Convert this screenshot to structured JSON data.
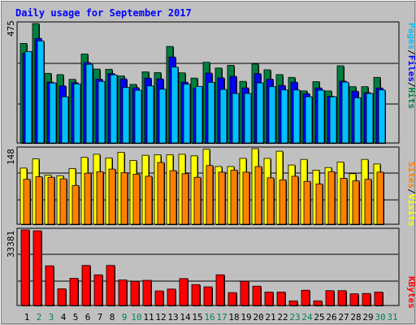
{
  "chart_data": [
    {
      "type": "bar",
      "title": "Daily usage for September 2017",
      "ylabel_max": "475",
      "right_label": [
        {
          "text": "Pages",
          "color": "#00C0FF"
        },
        {
          "text": "Files",
          "color": "#0000FF"
        },
        {
          "text": "Hits",
          "color": "#008040"
        }
      ],
      "categories": [
        "1",
        "2",
        "3",
        "4",
        "5",
        "6",
        "7",
        "8",
        "9",
        "10",
        "11",
        "12",
        "13",
        "14",
        "15",
        "16",
        "17",
        "18",
        "19",
        "20",
        "21",
        "22",
        "23",
        "24",
        "25",
        "26",
        "27",
        "28",
        "29",
        "30",
        "31"
      ],
      "ylim": [
        0,
        475
      ],
      "series": [
        {
          "name": "Hits",
          "color": "#008040",
          "values": [
            396,
            475,
            277,
            272,
            253,
            354,
            294,
            293,
            267,
            233,
            283,
            280,
            384,
            279,
            258,
            321,
            298,
            309,
            245,
            314,
            291,
            272,
            261,
            207,
            244,
            207,
            307,
            224,
            224,
            261,
            0
          ]
        },
        {
          "name": "Files",
          "color": "#0000FF",
          "values": [
            358,
            416,
            242,
            227,
            240,
            320,
            254,
            276,
            255,
            220,
            258,
            255,
            342,
            242,
            219,
            278,
            259,
            265,
            219,
            276,
            254,
            229,
            242,
            196,
            219,
            186,
            246,
            206,
            200,
            219,
            0
          ]
        },
        {
          "name": "Pages",
          "color": "#00C0FF",
          "values": [
            364,
            406,
            239,
            184,
            235,
            313,
            245,
            271,
            221,
            210,
            227,
            214,
            302,
            234,
            225,
            241,
            213,
            197,
            197,
            239,
            224,
            211,
            211,
            184,
            210,
            184,
            242,
            180,
            197,
            211,
            0
          ]
        }
      ]
    },
    {
      "type": "bar",
      "ylabel_max": "148",
      "right_label": [
        {
          "text": "Sites",
          "color": "#FF8000"
        },
        {
          "text": "Visits",
          "color": "#FFFF00"
        }
      ],
      "categories": [
        "1",
        "2",
        "3",
        "4",
        "5",
        "6",
        "7",
        "8",
        "9",
        "10",
        "11",
        "12",
        "13",
        "14",
        "15",
        "16",
        "17",
        "18",
        "19",
        "20",
        "21",
        "22",
        "23",
        "24",
        "25",
        "26",
        "27",
        "28",
        "29",
        "30",
        "31"
      ],
      "ylim": [
        0,
        148
      ],
      "series": [
        {
          "name": "Visits",
          "color": "#FFFF00",
          "values": [
            110,
            128,
            96,
            95,
            109,
            131,
            137,
            130,
            141,
            125,
            135,
            136,
            136,
            137,
            134,
            147,
            113,
            113,
            129,
            148,
            129,
            143,
            116,
            127,
            106,
            111,
            122,
            99,
            127,
            118,
            0
          ]
        },
        {
          "name": "Sites",
          "color": "#FF8000",
          "values": [
            88,
            93,
            92,
            89,
            76,
            100,
            103,
            108,
            101,
            98,
            94,
            121,
            105,
            99,
            92,
            115,
            102,
            106,
            102,
            113,
            91,
            87,
            94,
            84,
            79,
            103,
            90,
            85,
            88,
            102,
            0
          ]
        }
      ]
    },
    {
      "type": "bar",
      "ylabel_max": "33381",
      "right_label": [
        {
          "text": "KBytes",
          "color": "#FF0000"
        }
      ],
      "categories": [
        "1",
        "2",
        "3",
        "4",
        "5",
        "6",
        "7",
        "8",
        "9",
        "10",
        "11",
        "12",
        "13",
        "14",
        "15",
        "16",
        "17",
        "18",
        "19",
        "20",
        "21",
        "22",
        "23",
        "24",
        "25",
        "26",
        "27",
        "28",
        "29",
        "30",
        "31"
      ],
      "ylim": [
        0,
        33381
      ],
      "series": [
        {
          "name": "KBytes",
          "color": "#FF0000",
          "values": [
            33381,
            33015,
            17532,
            7382,
            12000,
            17712,
            13560,
            17712,
            11280,
            10695,
            11130,
            6442,
            7260,
            11910,
            9225,
            8250,
            13575,
            5712,
            10695,
            8550,
            5937,
            5952,
            2055,
            6742,
            2055,
            6555,
            6555,
            5160,
            5310,
            5937,
            0
          ]
        }
      ]
    }
  ],
  "weekend_days": [
    "2",
    "3",
    "9",
    "10",
    "16",
    "17",
    "23",
    "24",
    "30",
    "31"
  ],
  "weekday_label_color": "#000000",
  "weekend_label_color": "#00805C"
}
